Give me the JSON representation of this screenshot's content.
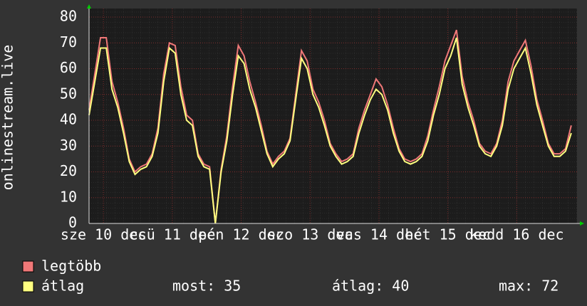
{
  "chart_data": {
    "type": "line",
    "y_label": "onlinestream.live",
    "x": [
      0,
      2,
      4,
      6,
      8,
      10,
      12,
      14,
      16,
      18,
      20,
      22,
      24,
      26,
      28,
      30,
      32,
      34,
      36,
      38,
      40,
      42,
      44,
      46,
      48,
      50,
      52,
      54,
      56,
      58,
      60,
      62,
      64,
      66,
      68,
      70,
      72,
      74,
      76,
      78,
      80,
      82,
      84,
      86,
      88,
      90,
      92,
      94,
      96,
      98,
      100,
      102,
      104,
      106,
      108,
      110,
      112,
      114,
      116,
      118,
      120,
      122,
      124,
      126,
      128,
      130,
      132,
      134,
      136,
      138,
      140,
      142,
      144,
      146,
      148,
      150,
      152,
      154,
      156,
      158,
      160,
      162,
      164,
      166,
      168
    ],
    "series": [
      {
        "name": "legtöbb",
        "color": "#f07878",
        "values": [
          44,
          58,
          72,
          72,
          55,
          47,
          37,
          25,
          20,
          22,
          23,
          27,
          37,
          58,
          70,
          69,
          53,
          42,
          40,
          27,
          23,
          22,
          0,
          21,
          34,
          53,
          69,
          65,
          55,
          47,
          38,
          28,
          23,
          26,
          28,
          33,
          50,
          67,
          63,
          52,
          47,
          40,
          31,
          27,
          24,
          25,
          27,
          37,
          44,
          50,
          56,
          53,
          46,
          37,
          29,
          25,
          24,
          25,
          27,
          34,
          44,
          53,
          63,
          69,
          75,
          57,
          47,
          40,
          31,
          28,
          27,
          31,
          40,
          55,
          63,
          67,
          71,
          61,
          48,
          40,
          31,
          27,
          27,
          29,
          38
        ]
      },
      {
        "name": "átlag",
        "color": "#ffff80",
        "values": [
          42,
          55,
          68,
          68,
          52,
          45,
          35,
          24,
          19,
          21,
          22,
          26,
          35,
          55,
          68,
          66,
          50,
          40,
          38,
          26,
          22,
          21,
          0,
          20,
          32,
          50,
          65,
          62,
          52,
          45,
          36,
          27,
          22,
          25,
          27,
          32,
          48,
          64,
          60,
          50,
          45,
          38,
          30,
          26,
          23,
          24,
          26,
          35,
          42,
          48,
          52,
          50,
          44,
          35,
          28,
          24,
          23,
          24,
          26,
          32,
          42,
          50,
          60,
          65,
          72,
          54,
          45,
          38,
          30,
          27,
          26,
          30,
          38,
          52,
          60,
          64,
          68,
          58,
          46,
          38,
          30,
          26,
          26,
          28,
          35
        ]
      }
    ],
    "xlim": [
      0,
      170
    ],
    "xticks": [
      {
        "value": 5,
        "label": "sze 10 dec"
      },
      {
        "value": 29,
        "label": "csü 11 dec"
      },
      {
        "value": 53,
        "label": "pén 12 dec"
      },
      {
        "value": 77,
        "label": "szo 13 dec"
      },
      {
        "value": 101,
        "label": "vas 14 dec"
      },
      {
        "value": 125,
        "label": "hét 15 dec"
      },
      {
        "value": 149,
        "label": "kedd 16 dec"
      }
    ],
    "ylim": [
      0,
      80
    ],
    "yticks": [
      0,
      10,
      20,
      30,
      40,
      50,
      60,
      70,
      80
    ],
    "grid": true,
    "stats": [
      "most: 35",
      "átlag: 40",
      "max: 72"
    ]
  }
}
